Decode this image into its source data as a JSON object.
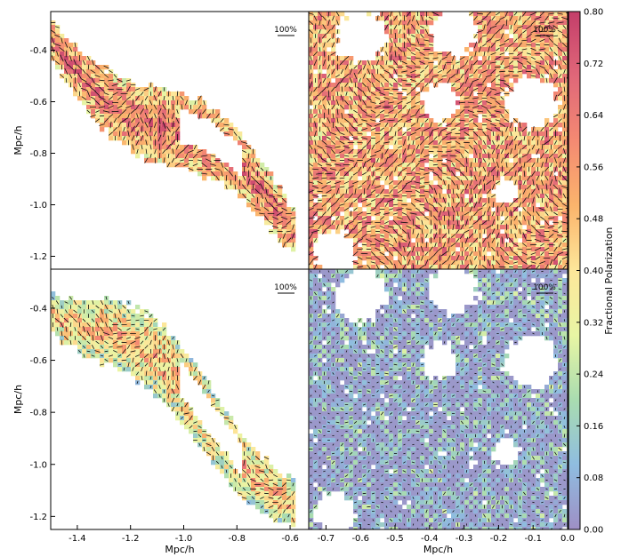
{
  "chart_data": {
    "type": "heatmap",
    "shared": {
      "xlabel": "Mpc/h",
      "ylabel": "Mpc/h",
      "colorbar": {
        "label": "Fractional Polarization",
        "range": [
          0.0,
          0.8
        ],
        "ticks": [
          "0.80",
          "0.72",
          "0.64",
          "0.56",
          "0.48",
          "0.40",
          "0.32",
          "0.24",
          "0.16",
          "0.08",
          "0.00"
        ],
        "colormap": [
          "#9e8fc5",
          "#8fbde0",
          "#a9dcb0",
          "#e8f5a4",
          "#fde79a",
          "#fbb46c",
          "#f48a72",
          "#e06779",
          "#c43e6a"
        ]
      },
      "vector_scale_label": "100%"
    },
    "panels": [
      {
        "id": "top-left",
        "xlim": [
          -1.5,
          -0.53
        ],
        "ylim": [
          -1.25,
          -0.25
        ],
        "yticks": [
          "-0.4",
          "-0.6",
          "-0.8",
          "-1.0",
          "-1.2"
        ],
        "xticks": [],
        "show_ylabel": true,
        "show_xlabel": false,
        "vector_scale_label": "100%",
        "structure": "filament",
        "mean_fraction": 0.55
      },
      {
        "id": "top-right",
        "xlim": [
          -0.75,
          0.0
        ],
        "ylim": [
          -1.25,
          -0.25
        ],
        "yticks": [],
        "xticks": [],
        "show_ylabel": false,
        "show_xlabel": false,
        "vector_scale_label": "100%",
        "structure": "dense",
        "mean_fraction": 0.6
      },
      {
        "id": "bottom-left",
        "xlim": [
          -1.5,
          -0.53
        ],
        "ylim": [
          -1.25,
          -0.25
        ],
        "yticks": [
          "-0.4",
          "-0.6",
          "-0.8",
          "-1.0",
          "-1.2"
        ],
        "xticks": [
          "-1.4",
          "-1.2",
          "-1.0",
          "-0.8",
          "-0.6"
        ],
        "show_ylabel": true,
        "show_xlabel": true,
        "vector_scale_label": "100%",
        "structure": "filament",
        "mean_fraction": 0.4
      },
      {
        "id": "bottom-right",
        "xlim": [
          -0.75,
          0.0
        ],
        "ylim": [
          -1.25,
          -0.25
        ],
        "yticks": [],
        "xticks": [
          "-0.7",
          "-0.6",
          "-0.5",
          "-0.4",
          "-0.3",
          "-0.2",
          "-0.1",
          "0.0"
        ],
        "show_ylabel": false,
        "show_xlabel": true,
        "vector_scale_label": "100%",
        "structure": "dense",
        "mean_fraction": 0.12
      }
    ]
  }
}
